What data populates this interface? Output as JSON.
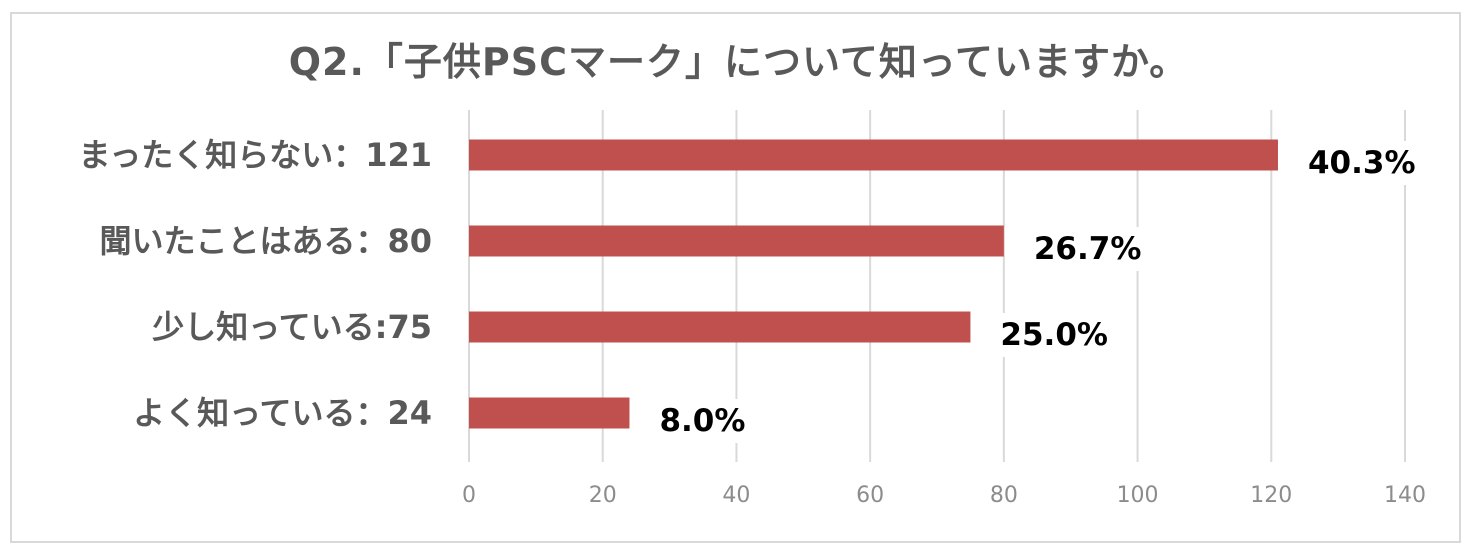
{
  "chart_data": {
    "type": "bar",
    "orientation": "horizontal",
    "title": "Q2.「子供PSCマーク」について知っていますか。",
    "categories": [
      "まったく知らない：121",
      "聞いたことはある：80",
      "少し知っている:75",
      "よく知っている：24"
    ],
    "values": [
      121,
      80,
      75,
      24
    ],
    "data_labels": [
      "40.3%",
      "26.7%",
      "25.0%",
      "8.0%"
    ],
    "xlim": [
      0,
      140
    ],
    "xticks": [
      0,
      20,
      40,
      60,
      80,
      100,
      120,
      140
    ],
    "xtick_labels": [
      "0",
      "20",
      "40",
      "60",
      "80",
      "100",
      "120",
      "140"
    ],
    "grid": true,
    "legend": "none",
    "bar_color": "#c0504d",
    "grid_color": "#d9d9d9"
  }
}
